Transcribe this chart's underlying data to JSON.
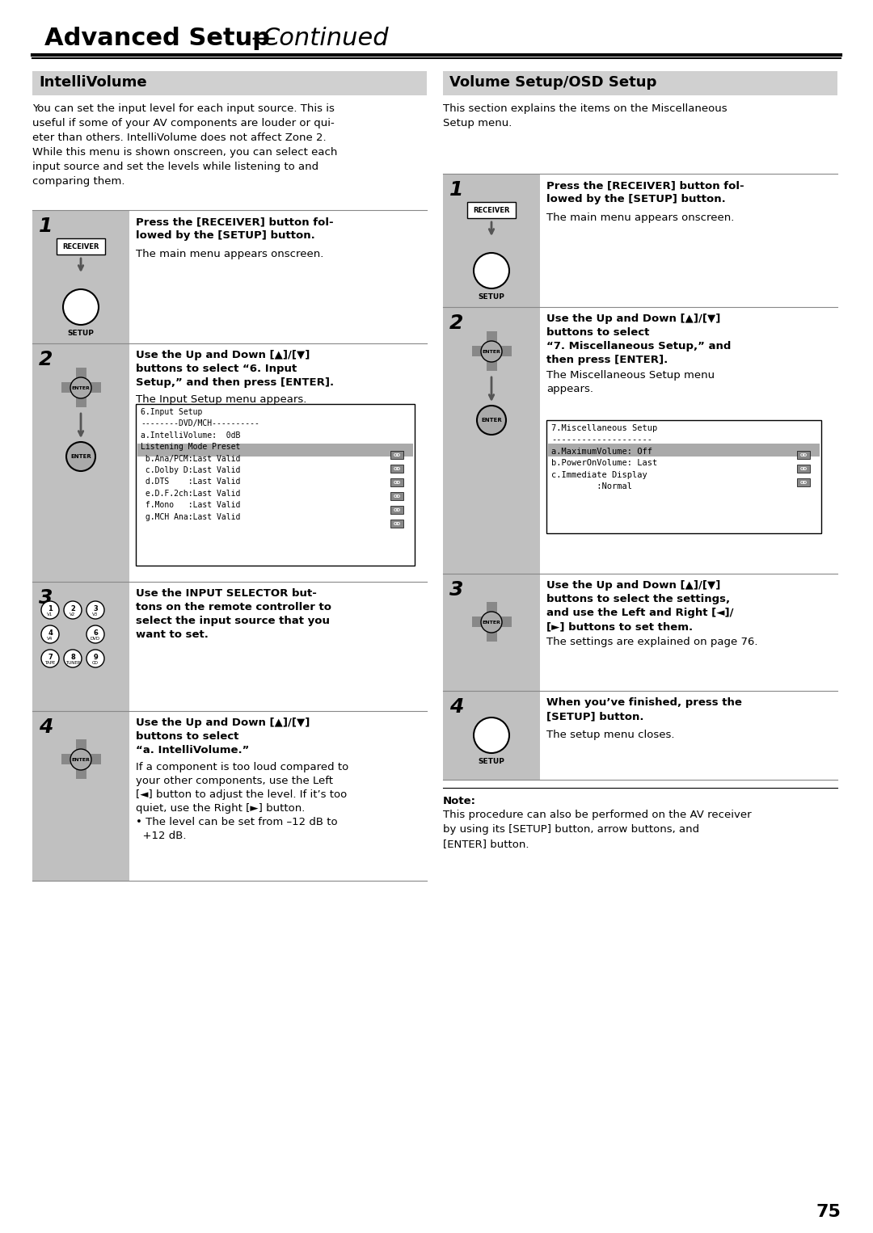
{
  "page_bg": "#ffffff",
  "title_text": "Advanced Setup",
  "title_italic": "—Continued",
  "left_section_title": "IntelliVolume",
  "right_section_title": "Volume Setup/OSD Setup",
  "section_title_bg": "#d0d0d0",
  "step_bg": "#c8c8c8",
  "page_number": "75",
  "left_intro": "You can set the input level for each input source. This is useful if some of your AV components are louder or quieter than others. IntelliVolume does not affect Zone 2.\nWhile this menu is shown onscreen, you can select each input source and set the levels while listening to and comparing them.",
  "right_intro": "This section explains the items on the Miscellaneous\nSetup menu.",
  "left_step1_title": "Press the [RECEIVER] button followed by the [SETUP] button.",
  "left_step1_body": "The main menu appears onscreen.",
  "left_step2_title": "Use the Up and Down [▲]/[▼]\nbuttons to select “6. Input\nSetup,” and then press [ENTER].",
  "left_step2_body": "The Input Setup menu appears.",
  "left_step2_screen": "6.Input Setup\n--------DVD/MCH----------\na.IntelliVolume:  0dB\nListening Mode Preset\n b.Ana/PCM:Last Valid\n c.Dolby D:Last Valid\n d.DTS    :Last Valid\n e.D.F.2ch:Last Valid\n f.Mono   :Last Valid\n g.MCH Ana:Last Valid",
  "left_step3_title": "Use the INPUT SELECTOR buttons on the remote controller to select the input source that you want to set.",
  "left_step4_title": "Use the Up and Down [▲]/[▼]\nbuttons to select\n“a. IntelliVolume.”",
  "left_step4_body": "If a component is too loud compared to your other components, use the Left [◄] button to adjust the level. If it’s too quiet, use the Right [►] button.\n• The level can be set from –12 dB to +12 dB.",
  "right_step1_title": "Press the [RECEIVER] button followed by the [SETUP] button.",
  "right_step1_body": "The main menu appears onscreen.",
  "right_step2_title": "Use the Up and Down [▲]/[▼]\nbuttons to select\n“7. Miscellaneous Setup,” and\nthen press [ENTER].",
  "right_step2_body": "The Miscellaneous Setup menu\nappears.",
  "right_step2_screen": "7.Miscellaneous Setup\n--------------------\na.MaximumVolume: Off\nb.PowerOnVolume: Last\nc.Immediate Display\n         :Normal",
  "right_step3_title": "Use the Up and Down [▲]/[▼]\nbuttons to select the settings,\nand use the Left and Right [◄]/\n[►] buttons to set them.",
  "right_step3_body": "The settings are explained on page 76.",
  "right_step4_title": "When you’ve finished, press the\n[SETUP] button.",
  "right_step4_body": "The setup menu closes.",
  "note_text": "Note:\nThis procedure can also be performed on the AV receiver\nby using its [SETUP] button, arrow buttons, and\n[ENTER] button."
}
